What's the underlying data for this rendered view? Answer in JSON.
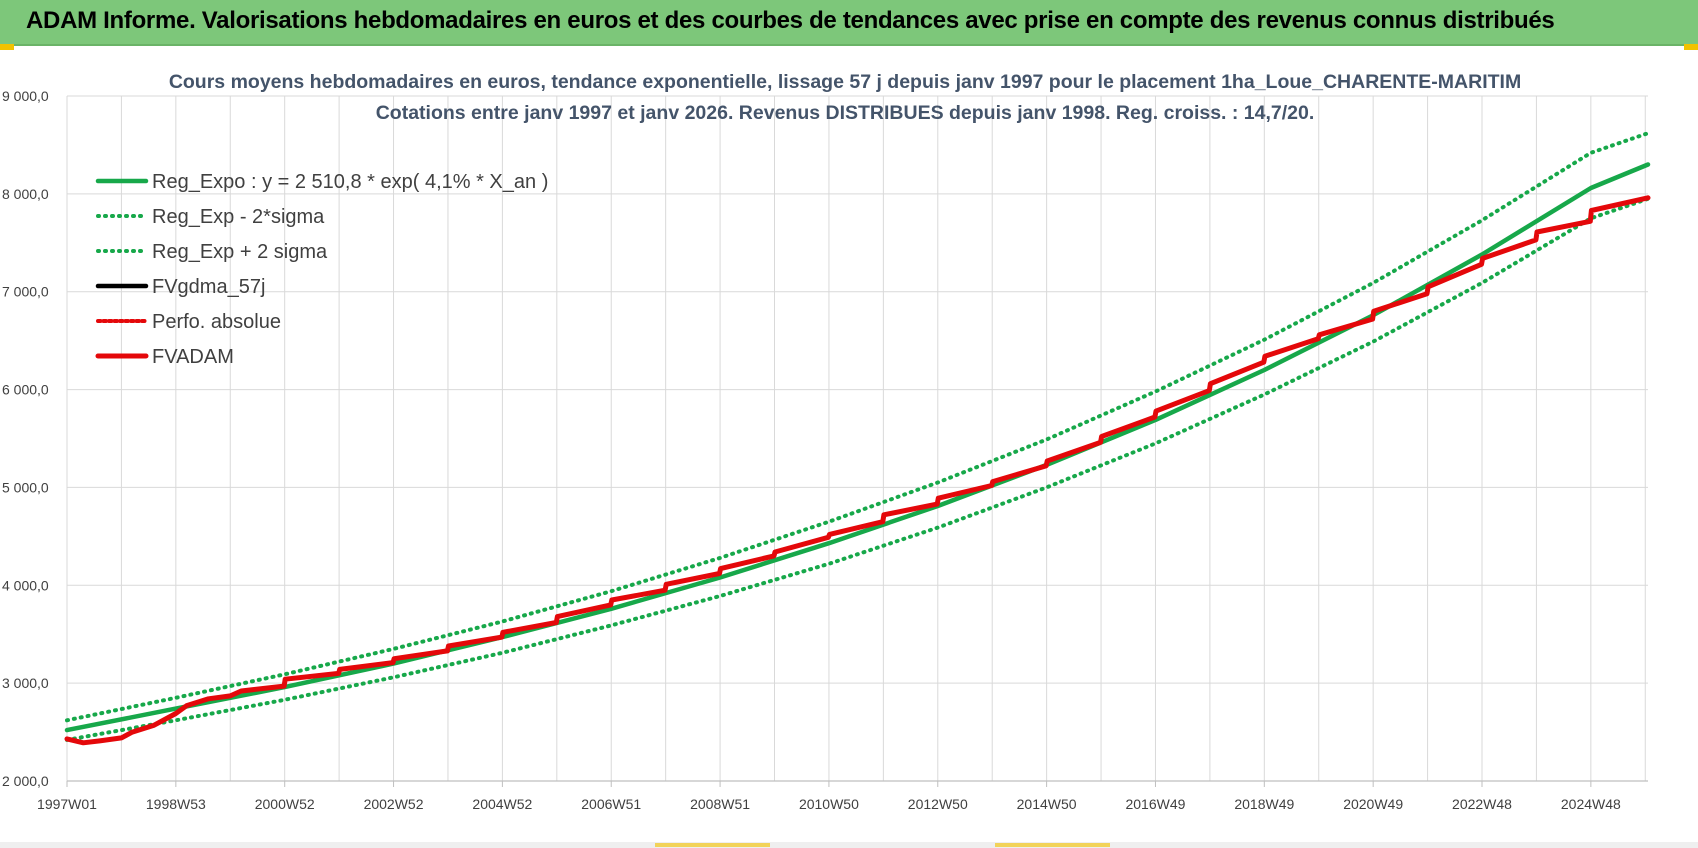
{
  "header": {
    "title": "ADAM Informe. Valorisations hebdomadaires en euros et des courbes de tendances avec prise en compte des revenus connus distribués"
  },
  "colors": {
    "banner": "#7dc77a",
    "regression": "#17a84a",
    "fvadam": "#e4080a",
    "fvgdma": "#000000",
    "gridline": "#d9d9d9"
  },
  "chart_data": {
    "type": "line",
    "title": "Cours moyens hebdomadaires en euros, tendance exponentielle, lissage 57 j depuis janv 1997  pour le placement 1ha_Loue_CHARENTE-MARITIM",
    "subtitle": "Cotations entre janv 1997 et janv 2026. Revenus DISTRIBUES depuis janv 1998.  Reg. croiss. : 14,7/20.",
    "xlabel": "",
    "ylabel": "",
    "ylim": [
      2000,
      9000
    ],
    "y_ticks": [
      "2 000,0",
      "3 000,0",
      "4 000,0",
      "5 000,0",
      "6 000,0",
      "7 000,0",
      "8 000,0",
      "9 000,0"
    ],
    "x_range": [
      1997.0,
      2026.05
    ],
    "x_ticks": [
      {
        "label": "1997W01",
        "x": 1997.0
      },
      {
        "label": "1998W53",
        "x": 1999.0
      },
      {
        "label": "2000W52",
        "x": 2001.0
      },
      {
        "label": "2002W52",
        "x": 2003.0
      },
      {
        "label": "2004W52",
        "x": 2005.0
      },
      {
        "label": "2006W51",
        "x": 2007.0
      },
      {
        "label": "2008W51",
        "x": 2009.0
      },
      {
        "label": "2010W50",
        "x": 2011.0
      },
      {
        "label": "2012W50",
        "x": 2013.0
      },
      {
        "label": "2014W50",
        "x": 2015.0
      },
      {
        "label": "2016W49",
        "x": 2017.0
      },
      {
        "label": "2018W49",
        "x": 2019.0
      },
      {
        "label": "2020W49",
        "x": 2021.0
      },
      {
        "label": "2022W48",
        "x": 2023.0
      },
      {
        "label": "2024W48",
        "x": 2025.0
      }
    ],
    "grid": true,
    "legend_position": "top-left",
    "series": [
      {
        "name": "Reg_Expo : y = 2 510,8 * exp( 4,1% *  X_an )",
        "style": "solid",
        "color": "#17a84a",
        "x": [
          1997.0,
          1999.0,
          2001.0,
          2003.0,
          2005.0,
          2007.0,
          2009.0,
          2011.0,
          2013.0,
          2015.0,
          2017.0,
          2019.0,
          2021.0,
          2023.0,
          2025.0,
          2026.05
        ],
        "y": [
          2520,
          2740,
          2960,
          3200,
          3470,
          3760,
          4080,
          4430,
          4810,
          5230,
          5690,
          6200,
          6760,
          7380,
          8060,
          8300
        ]
      },
      {
        "name": "Reg_Exp - 2*sigma",
        "style": "dotted",
        "color": "#17a84a",
        "x": [
          1997.0,
          1999.0,
          2001.0,
          2003.0,
          2005.0,
          2007.0,
          2009.0,
          2011.0,
          2013.0,
          2015.0,
          2017.0,
          2019.0,
          2021.0,
          2023.0,
          2025.0,
          2026.05
        ],
        "y": [
          2420,
          2620,
          2830,
          3060,
          3310,
          3590,
          3890,
          4220,
          4590,
          5000,
          5450,
          5950,
          6490,
          7090,
          7750,
          7950
        ]
      },
      {
        "name": "Reg_Exp + 2 sigma",
        "style": "dotted",
        "color": "#17a84a",
        "x": [
          1997.0,
          1999.0,
          2001.0,
          2003.0,
          2005.0,
          2007.0,
          2009.0,
          2011.0,
          2013.0,
          2015.0,
          2017.0,
          2019.0,
          2021.0,
          2023.0,
          2025.0,
          2026.05
        ],
        "y": [
          2620,
          2850,
          3090,
          3350,
          3630,
          3940,
          4280,
          4650,
          5050,
          5490,
          5980,
          6510,
          7090,
          7730,
          8420,
          8620
        ]
      },
      {
        "name": "FVgdma_57j",
        "style": "solid",
        "color": "#000000",
        "x": [
          1997.0,
          1997.3,
          1997.6,
          1998.0,
          1998.2,
          1998.6,
          1999.0,
          1999.2,
          1999.6,
          2000.0,
          2000.2,
          2000.99,
          2001.01,
          2001.99,
          2002.01,
          2002.99,
          2003.01,
          2003.99,
          2004.01,
          2004.99,
          2005.01,
          2005.99,
          2006.01,
          2006.99,
          2007.01,
          2007.99,
          2008.01,
          2008.99,
          2009.01,
          2009.99,
          2010.01,
          2010.99,
          2011.01,
          2011.99,
          2012.01,
          2012.99,
          2013.01,
          2013.99,
          2014.01,
          2014.99,
          2015.01,
          2015.99,
          2016.01,
          2016.99,
          2017.01,
          2017.99,
          2018.01,
          2018.99,
          2019.01,
          2019.99,
          2020.01,
          2020.99,
          2021.01,
          2021.99,
          2022.01,
          2022.99,
          2023.01,
          2023.99,
          2024.01,
          2024.99,
          2025.01,
          2026.05
        ],
        "y": [
          2430,
          2390,
          2410,
          2440,
          2500,
          2570,
          2690,
          2770,
          2840,
          2870,
          2920,
          2970,
          3040,
          3100,
          3140,
          3210,
          3250,
          3330,
          3380,
          3470,
          3520,
          3620,
          3680,
          3800,
          3850,
          3950,
          4010,
          4120,
          4170,
          4300,
          4340,
          4490,
          4520,
          4650,
          4720,
          4830,
          4890,
          5020,
          5060,
          5220,
          5270,
          5460,
          5520,
          5720,
          5780,
          5990,
          6060,
          6280,
          6340,
          6520,
          6560,
          6720,
          6800,
          6980,
          7050,
          7280,
          7340,
          7530,
          7610,
          7720,
          7830,
          7960
        ]
      },
      {
        "name": "Perfo. absolue",
        "style": "dotted",
        "color": "#e4080a",
        "x": [
          1997.0,
          1997.3,
          1997.6,
          1998.0,
          1998.2,
          1998.6,
          1999.0,
          1999.2,
          1999.6,
          2000.0,
          2000.2,
          2000.99,
          2001.01,
          2001.99,
          2002.01,
          2002.99,
          2003.01,
          2003.99,
          2004.01,
          2004.99,
          2005.01,
          2005.99,
          2006.01,
          2006.99,
          2007.01,
          2007.99,
          2008.01,
          2008.99,
          2009.01,
          2009.99,
          2010.01,
          2010.99,
          2011.01,
          2011.99,
          2012.01,
          2012.99,
          2013.01,
          2013.99,
          2014.01,
          2014.99,
          2015.01,
          2015.99,
          2016.01,
          2016.99,
          2017.01,
          2017.99,
          2018.01,
          2018.99,
          2019.01,
          2019.99,
          2020.01,
          2020.99,
          2021.01,
          2021.99,
          2022.01,
          2022.99,
          2023.01,
          2023.99,
          2024.01,
          2024.99,
          2025.01,
          2026.05
        ],
        "y": [
          2430,
          2390,
          2410,
          2440,
          2500,
          2570,
          2690,
          2770,
          2840,
          2870,
          2920,
          2970,
          3040,
          3100,
          3140,
          3210,
          3250,
          3330,
          3380,
          3470,
          3520,
          3620,
          3680,
          3800,
          3850,
          3950,
          4010,
          4120,
          4170,
          4300,
          4340,
          4490,
          4520,
          4650,
          4720,
          4830,
          4890,
          5020,
          5060,
          5220,
          5270,
          5460,
          5520,
          5720,
          5780,
          5990,
          6060,
          6280,
          6340,
          6520,
          6560,
          6720,
          6800,
          6980,
          7050,
          7280,
          7340,
          7530,
          7610,
          7720,
          7830,
          7960
        ]
      },
      {
        "name": "FVADAM",
        "style": "solid",
        "color": "#e4080a",
        "x": [
          1997.0,
          1997.3,
          1997.6,
          1998.0,
          1998.2,
          1998.6,
          1999.0,
          1999.2,
          1999.6,
          2000.0,
          2000.2,
          2000.99,
          2001.01,
          2001.99,
          2002.01,
          2002.99,
          2003.01,
          2003.99,
          2004.01,
          2004.99,
          2005.01,
          2005.99,
          2006.01,
          2006.99,
          2007.01,
          2007.99,
          2008.01,
          2008.99,
          2009.01,
          2009.99,
          2010.01,
          2010.99,
          2011.01,
          2011.99,
          2012.01,
          2012.99,
          2013.01,
          2013.99,
          2014.01,
          2014.99,
          2015.01,
          2015.99,
          2016.01,
          2016.99,
          2017.01,
          2017.99,
          2018.01,
          2018.99,
          2019.01,
          2019.99,
          2020.01,
          2020.99,
          2021.01,
          2021.99,
          2022.01,
          2022.99,
          2023.01,
          2023.99,
          2024.01,
          2024.99,
          2025.01,
          2026.05
        ],
        "y": [
          2430,
          2390,
          2410,
          2440,
          2500,
          2570,
          2690,
          2770,
          2840,
          2870,
          2920,
          2970,
          3040,
          3100,
          3140,
          3210,
          3250,
          3330,
          3380,
          3470,
          3520,
          3620,
          3680,
          3800,
          3850,
          3950,
          4010,
          4120,
          4170,
          4300,
          4340,
          4490,
          4520,
          4650,
          4720,
          4830,
          4890,
          5020,
          5060,
          5220,
          5270,
          5460,
          5520,
          5720,
          5780,
          5990,
          6060,
          6280,
          6340,
          6520,
          6560,
          6720,
          6800,
          6980,
          7050,
          7280,
          7340,
          7530,
          7610,
          7720,
          7830,
          7960
        ]
      }
    ]
  }
}
